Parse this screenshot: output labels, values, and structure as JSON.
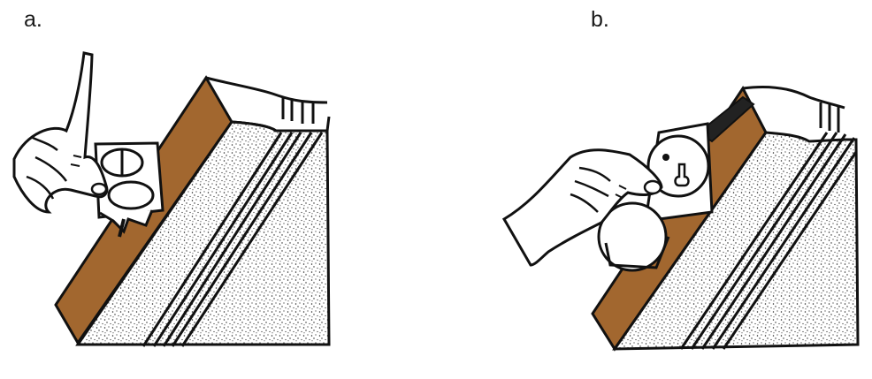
{
  "panels": [
    {
      "label": "a."
    },
    {
      "label": "b."
    }
  ],
  "colors": {
    "rock_face": "#a2672f",
    "ink": "#111111",
    "paper": "#ffffff"
  },
  "icons": {
    "panel_a": "compass-on-outcrop-icon",
    "panel_b": "compass-level-reading-icon"
  }
}
